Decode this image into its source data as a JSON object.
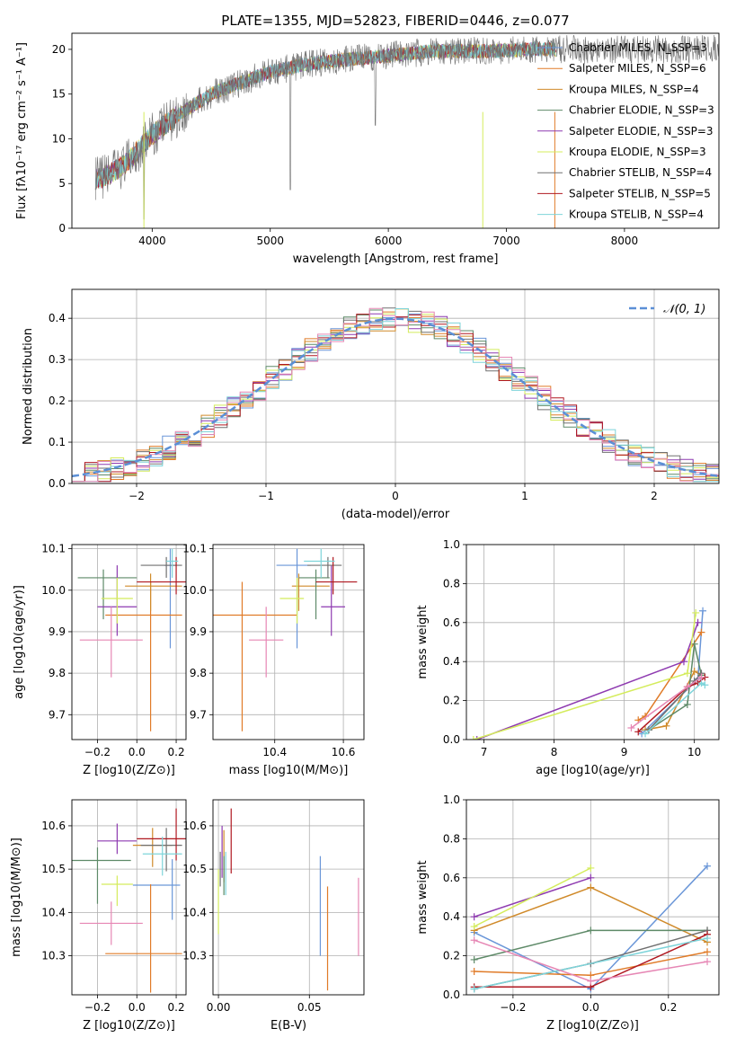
{
  "colors": [
    "#6a96d8",
    "#e07b28",
    "#d08a2a",
    "#5e8a68",
    "#8e3ab0",
    "#d4ec5c",
    "#707070",
    "#b01820",
    "#7ed4da",
    "#e686b4"
  ],
  "chart_data": [
    {
      "id": "spectrum",
      "type": "line",
      "title": "PLATE=1355, MJD=52823, FIBERID=0446, z=0.077",
      "xlabel": "wavelength [Angstrom, rest frame]",
      "ylabel": "Flux [fλ10⁻¹⁷ erg cm⁻² s⁻¹ A⁻¹]",
      "xlim": [
        3320,
        8800
      ],
      "ylim": [
        0,
        21.8
      ],
      "xticks": [
        4000,
        5000,
        6000,
        7000,
        8000
      ],
      "yticks": [
        0,
        5,
        10,
        15,
        20
      ],
      "legend_position": "right",
      "legend": [
        "Chabrier MILES, N_SSP=3",
        "Salpeter MILES, N_SSP=6",
        "Kroupa MILES, N_SSP=4",
        "Chabrier ELODIE, N_SSP=3",
        "Salpeter ELODIE, N_SSP=3",
        "Kroupa ELODIE, N_SSP=3",
        "Chabrier STELIB, N_SSP=4",
        "Salpeter STELIB, N_SSP=5",
        "Kroupa STELIB, N_SSP=4"
      ],
      "continuum": [
        [
          3550,
          5.5
        ],
        [
          3700,
          6.5
        ],
        [
          3800,
          7.5
        ],
        [
          3900,
          9
        ],
        [
          4000,
          10.5
        ],
        [
          4200,
          12.5
        ],
        [
          4500,
          15
        ],
        [
          4800,
          16.5
        ],
        [
          5000,
          17.5
        ],
        [
          5300,
          18.3
        ],
        [
          5600,
          18.8
        ],
        [
          6000,
          19.3
        ],
        [
          6400,
          19.8
        ],
        [
          6800,
          19.8
        ],
        [
          7200,
          20
        ],
        [
          7400,
          20
        ]
      ],
      "data_range": [
        3520,
        8800
      ]
    },
    {
      "id": "residuals",
      "type": "step",
      "xlabel": "(data-model)/error",
      "ylabel": "Normed distribution",
      "xlim": [
        -2.5,
        2.5
      ],
      "ylim": [
        0,
        0.47
      ],
      "xticks": [
        -2,
        -1,
        0,
        1,
        2
      ],
      "xtick_labels": [
        "−2",
        "−1",
        "0",
        "1",
        "2"
      ],
      "yticks": [
        0,
        0.1,
        0.2,
        0.3,
        0.4
      ],
      "ytick_labels": [
        "0.0",
        "0.1",
        "0.2",
        "0.3",
        "0.4"
      ],
      "grid": true,
      "legend_position": "top-right",
      "reference": {
        "name": "𝒩(0, 1)",
        "type": "normal",
        "mean": 0,
        "sigma": 1
      },
      "bin_width": 0.1
    },
    {
      "id": "age-Z",
      "type": "errorbar",
      "xlabel": "Z [log10(Z/Z⊙)]",
      "ylabel": "age  [log10(age/yr)]",
      "xlim": [
        -0.33,
        0.25
      ],
      "ylim": [
        9.64,
        10.11
      ],
      "xticks": [
        -0.2,
        0,
        0.2
      ],
      "xtick_labels": [
        "−0.2",
        "0.0",
        "0.2"
      ],
      "yticks": [
        9.7,
        9.8,
        9.9,
        10.0,
        10.1
      ],
      "ytick_labels": [
        "9.7",
        "9.8",
        "9.9",
        "10.0",
        "10.1"
      ],
      "grid": true,
      "points": [
        {
          "x": 0.17,
          "xerr": [
            0.03,
            0.03
          ],
          "y": 10.06,
          "yerr": [
            0.2,
            0.04
          ]
        },
        {
          "x": 0.07,
          "xerr": [
            0.23,
            0.16
          ],
          "y": 9.94,
          "yerr": [
            0.28,
            0.08
          ]
        },
        {
          "x": 0.07,
          "xerr": [
            0.13,
            0.16
          ],
          "y": 10.01,
          "yerr": [
            0.06,
            0.03
          ]
        },
        {
          "x": -0.17,
          "xerr": [
            0.13,
            0.17
          ],
          "y": 10.03,
          "yerr": [
            0.1,
            0.02
          ]
        },
        {
          "x": -0.1,
          "xerr": [
            0.1,
            0.1
          ],
          "y": 9.96,
          "yerr": [
            0.07,
            0.1
          ]
        },
        {
          "x": -0.1,
          "xerr": [
            0.08,
            0.08
          ],
          "y": 9.98,
          "yerr": [
            0.06,
            0.05
          ]
        },
        {
          "x": 0.15,
          "xerr": [
            0.13,
            0.08
          ],
          "y": 10.06,
          "yerr": [
            0.03,
            0.02
          ]
        },
        {
          "x": 0.2,
          "xerr": [
            0.2,
            0.05
          ],
          "y": 10.02,
          "yerr": [
            0.03,
            0.06
          ]
        },
        {
          "x": 0.18,
          "xerr": [
            0.03,
            0.03
          ],
          "y": 10.07,
          "yerr": [
            0.04,
            0.03
          ]
        },
        {
          "x": -0.13,
          "xerr": [
            0.16,
            0.16
          ],
          "y": 9.88,
          "yerr": [
            0.09,
            0.08
          ]
        }
      ]
    },
    {
      "id": "age-mass",
      "type": "errorbar",
      "xlabel": "mass [log10(M/M⊙)]",
      "ylabel": "",
      "xlim": [
        10.22,
        10.66
      ],
      "ylim": [
        9.64,
        10.11
      ],
      "xticks": [
        10.4,
        10.6
      ],
      "xtick_labels": [
        "10.4",
        "10.6"
      ],
      "yticks": [
        9.7,
        9.8,
        9.9,
        10.0,
        10.1
      ],
      "ytick_labels": [
        "9.7",
        "9.8",
        "9.9",
        "10.0",
        "10.1"
      ],
      "grid": true,
      "points": [
        {
          "x": 10.465,
          "xerr": [
            0.06,
            0.04
          ],
          "y": 10.06,
          "yerr": [
            0.2,
            0.04
          ]
        },
        {
          "x": 10.305,
          "xerr": [
            0.09,
            0.16
          ],
          "y": 9.94,
          "yerr": [
            0.28,
            0.08
          ]
        },
        {
          "x": 10.47,
          "xerr": [
            0.02,
            0.09
          ],
          "y": 10.01,
          "yerr": [
            0.06,
            0.03
          ]
        },
        {
          "x": 10.52,
          "xerr": [
            0.05,
            0.04
          ],
          "y": 10.03,
          "yerr": [
            0.1,
            0.02
          ]
        },
        {
          "x": 10.565,
          "xerr": [
            0.03,
            0.04
          ],
          "y": 9.96,
          "yerr": [
            0.07,
            0.1
          ]
        },
        {
          "x": 10.465,
          "xerr": [
            0.05,
            0.02
          ],
          "y": 9.98,
          "yerr": [
            0.06,
            0.05
          ]
        },
        {
          "x": 10.555,
          "xerr": [
            0.06,
            0.04
          ],
          "y": 10.06,
          "yerr": [
            0.03,
            0.02
          ]
        },
        {
          "x": 10.57,
          "xerr": [
            0.05,
            0.07
          ],
          "y": 10.02,
          "yerr": [
            0.03,
            0.06
          ]
        },
        {
          "x": 10.535,
          "xerr": [
            0.05,
            0.04
          ],
          "y": 10.07,
          "yerr": [
            0.04,
            0.03
          ]
        },
        {
          "x": 10.375,
          "xerr": [
            0.05,
            0.05
          ],
          "y": 9.88,
          "yerr": [
            0.09,
            0.08
          ]
        }
      ]
    },
    {
      "id": "weight-age",
      "type": "line",
      "xlabel": "age  [log10(age/yr)]",
      "ylabel": "mass weight",
      "xlim": [
        6.75,
        10.35
      ],
      "ylim": [
        0,
        1.0
      ],
      "xticks": [
        7,
        8,
        9,
        10
      ],
      "xtick_labels": [
        "7",
        "8",
        "9",
        "10"
      ],
      "yticks": [
        0,
        0.2,
        0.4,
        0.6,
        0.8,
        1.0
      ],
      "ytick_labels": [
        "0.0",
        "0.2",
        "0.4",
        "0.6",
        "0.8",
        "1.0"
      ],
      "grid": true,
      "series": [
        {
          "x": [
            9.25,
            10.05,
            10.12
          ],
          "y": [
            0.03,
            0.31,
            0.66
          ]
        },
        {
          "x": [
            9.2,
            9.3,
            10.1
          ],
          "y": [
            0.1,
            0.12,
            0.55
          ]
        },
        {
          "x": [
            9.3,
            9.6,
            10.0,
            10.1
          ],
          "y": [
            0.05,
            0.07,
            0.35,
            0.33
          ]
        },
        {
          "x": [
            9.35,
            9.9,
            10.0,
            10.1
          ],
          "y": [
            0.05,
            0.18,
            0.49,
            0.33
          ]
        },
        {
          "x": [
            6.9,
            9.85,
            10.05
          ],
          "y": [
            0.0,
            0.4,
            0.6
          ]
        },
        {
          "x": [
            6.85,
            9.9,
            10.02
          ],
          "y": [
            0.0,
            0.34,
            0.65
          ]
        },
        {
          "x": [
            9.35,
            10.0,
            10.1
          ],
          "y": [
            0.05,
            0.3,
            0.34
          ]
        },
        {
          "x": [
            9.2,
            9.9,
            10.05,
            10.15
          ],
          "y": [
            0.04,
            0.27,
            0.29,
            0.32
          ]
        },
        {
          "x": [
            9.3,
            10.1,
            10.15
          ],
          "y": [
            0.03,
            0.29,
            0.28
          ]
        },
        {
          "x": [
            9.1,
            9.9,
            10.1
          ],
          "y": [
            0.06,
            0.27,
            0.32
          ]
        }
      ]
    },
    {
      "id": "mass-Z",
      "type": "errorbar",
      "xlabel": "Z [log10(Z/Z⊙)]",
      "ylabel": "mass [log10(M/M⊙)]",
      "xlim": [
        -0.33,
        0.25
      ],
      "ylim": [
        10.21,
        10.66
      ],
      "xticks": [
        -0.2,
        0,
        0.2
      ],
      "xtick_labels": [
        "−0.2",
        "0.0",
        "0.2"
      ],
      "yticks": [
        10.3,
        10.4,
        10.5,
        10.6
      ],
      "ytick_labels": [
        "10.3",
        "10.4",
        "10.5",
        "10.6"
      ],
      "grid": true,
      "points": [
        {
          "x": 0.18,
          "xerr": [
            0.2,
            0.04
          ],
          "y": 10.463,
          "yerr": [
            0.08,
            0.06
          ]
        },
        {
          "x": 0.07,
          "xerr": [
            0.23,
            0.16
          ],
          "y": 10.305,
          "yerr": [
            0.09,
            0.16
          ]
        },
        {
          "x": 0.08,
          "xerr": [
            0.1,
            0.1
          ],
          "y": 10.555,
          "yerr": [
            0.05,
            0.04
          ]
        },
        {
          "x": -0.2,
          "xerr": [
            0.13,
            0.17
          ],
          "y": 10.52,
          "yerr": [
            0.1,
            0.03
          ]
        },
        {
          "x": -0.1,
          "xerr": [
            0.1,
            0.1
          ],
          "y": 10.565,
          "yerr": [
            0.03,
            0.04
          ]
        },
        {
          "x": -0.1,
          "xerr": [
            0.08,
            0.08
          ],
          "y": 10.465,
          "yerr": [
            0.05,
            0.02
          ]
        },
        {
          "x": 0.15,
          "xerr": [
            0.13,
            0.08
          ],
          "y": 10.555,
          "yerr": [
            0.06,
            0.04
          ]
        },
        {
          "x": 0.2,
          "xerr": [
            0.2,
            0.05
          ],
          "y": 10.57,
          "yerr": [
            0.05,
            0.07
          ]
        },
        {
          "x": 0.13,
          "xerr": [
            0.1,
            0.1
          ],
          "y": 10.535,
          "yerr": [
            0.05,
            0.04
          ]
        },
        {
          "x": -0.13,
          "xerr": [
            0.16,
            0.16
          ],
          "y": 10.375,
          "yerr": [
            0.05,
            0.05
          ]
        }
      ]
    },
    {
      "id": "mass-EBV",
      "type": "errorbar",
      "xlabel": "E(B-V)",
      "ylabel": "",
      "xlim": [
        -0.003,
        0.08
      ],
      "ylim": [
        10.21,
        10.66
      ],
      "xticks": [
        0,
        0.05
      ],
      "xtick_labels": [
        "0.00",
        "0.05"
      ],
      "yticks": [
        10.3,
        10.4,
        10.5,
        10.6
      ],
      "ytick_labels": [
        "10.3",
        "10.4",
        "10.5",
        "10.6"
      ],
      "grid": true,
      "points": [
        {
          "x": 0.056,
          "xerr": [
            0,
            0
          ],
          "y": 10.4,
          "yerr": [
            0.1,
            0.13
          ]
        },
        {
          "x": 0.06,
          "xerr": [
            0,
            0
          ],
          "y": 10.3,
          "yerr": [
            0.08,
            0.16
          ]
        },
        {
          "x": 0.003,
          "xerr": [
            0,
            0
          ],
          "y": 10.52,
          "yerr": [
            0.05,
            0.07
          ]
        },
        {
          "x": 0.003,
          "xerr": [
            0,
            0
          ],
          "y": 10.5,
          "yerr": [
            0.06,
            0.03
          ]
        },
        {
          "x": 0.002,
          "xerr": [
            0,
            0
          ],
          "y": 10.53,
          "yerr": [
            0.05,
            0.07
          ]
        },
        {
          "x": 0.0,
          "xerr": [
            0,
            0
          ],
          "y": 10.43,
          "yerr": [
            0.08,
            0.07
          ]
        },
        {
          "x": 0.001,
          "xerr": [
            0,
            0
          ],
          "y": 10.5,
          "yerr": [
            0.04,
            0.04
          ]
        },
        {
          "x": 0.007,
          "xerr": [
            0,
            0
          ],
          "y": 10.56,
          "yerr": [
            0.07,
            0.08
          ]
        },
        {
          "x": 0.004,
          "xerr": [
            0,
            0
          ],
          "y": 10.5,
          "yerr": [
            0.06,
            0.04
          ]
        },
        {
          "x": 0.077,
          "xerr": [
            0,
            0
          ],
          "y": 10.38,
          "yerr": [
            0.08,
            0.1
          ]
        }
      ]
    },
    {
      "id": "weight-Z",
      "type": "line",
      "xlabel": "Z [log10(Z/Z⊙)]",
      "ylabel": "mass weight",
      "xlim": [
        -0.32,
        0.33
      ],
      "ylim": [
        0,
        1.0
      ],
      "xticks": [
        -0.2,
        0,
        0.2
      ],
      "xtick_labels": [
        "−0.2",
        "0.0",
        "0.2"
      ],
      "yticks": [
        0,
        0.2,
        0.4,
        0.6,
        0.8,
        1.0
      ],
      "ytick_labels": [
        "0.0",
        "0.2",
        "0.4",
        "0.6",
        "0.8",
        "1.0"
      ],
      "grid": true,
      "series": [
        {
          "x": [
            -0.3,
            0.0,
            0.3
          ],
          "y": [
            0.32,
            0.03,
            0.66
          ]
        },
        {
          "x": [
            -0.3,
            0.0,
            0.3
          ],
          "y": [
            0.12,
            0.1,
            0.22
          ]
        },
        {
          "x": [
            -0.3,
            0.0,
            0.3
          ],
          "y": [
            0.33,
            0.55,
            0.27
          ]
        },
        {
          "x": [
            -0.3,
            0.0,
            0.3
          ],
          "y": [
            0.18,
            0.33,
            0.33
          ]
        },
        {
          "x": [
            -0.3,
            0.0
          ],
          "y": [
            0.4,
            0.6
          ]
        },
        {
          "x": [
            -0.3,
            0.0
          ],
          "y": [
            0.35,
            0.65
          ]
        },
        {
          "x": [
            -0.3,
            0.0,
            0.3
          ],
          "y": [
            0.03,
            0.16,
            0.33
          ]
        },
        {
          "x": [
            -0.3,
            0.0,
            0.3
          ],
          "y": [
            0.04,
            0.04,
            0.31
          ]
        },
        {
          "x": [
            -0.3,
            0.3
          ],
          "y": [
            0.03,
            0.29
          ]
        },
        {
          "x": [
            -0.3,
            0.0,
            0.3
          ],
          "y": [
            0.28,
            0.07,
            0.17
          ]
        }
      ]
    }
  ]
}
